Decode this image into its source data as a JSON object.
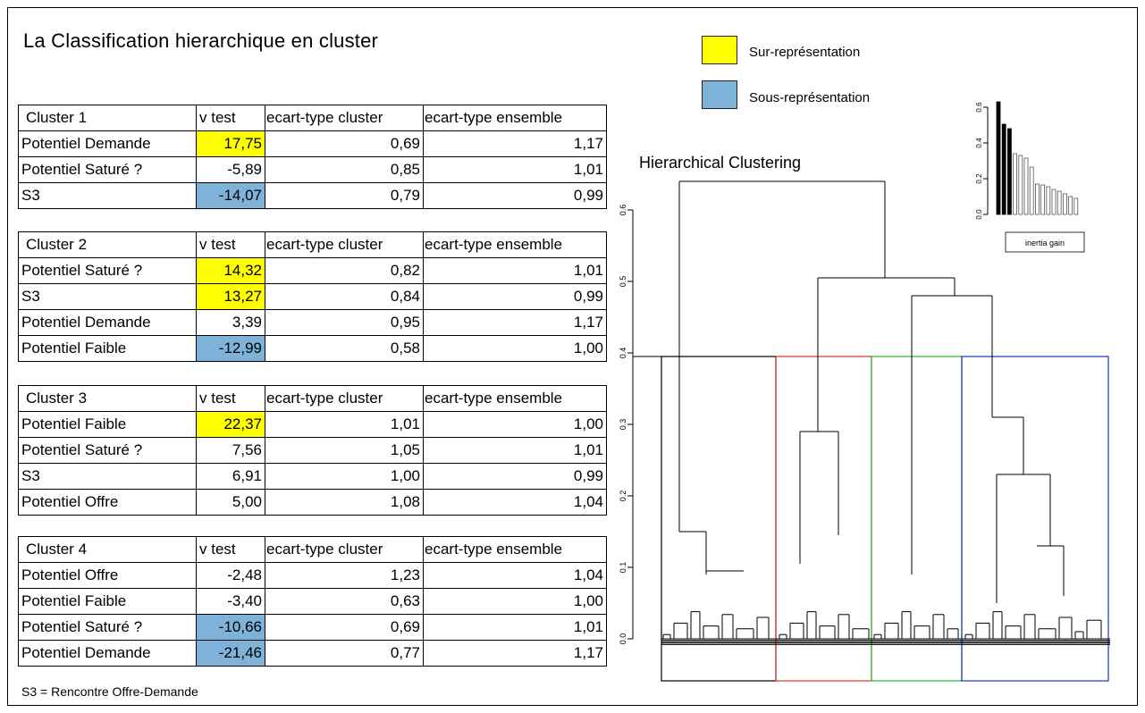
{
  "title": "La Classification hierarchique en cluster",
  "legend": [
    {
      "label": "Sur-représentation",
      "color": "#ffff00"
    },
    {
      "label": "Sous-représentation",
      "color": "#7fb2d9"
    }
  ],
  "clusters": [
    {
      "header": [
        "Cluster 1",
        "v test",
        "ecart-type cluster",
        "ecart-type ensemble"
      ],
      "rows": [
        {
          "label": "Potentiel Demande",
          "vtest": "17,75",
          "sd_cluster": "0,69",
          "sd_all": "1,17",
          "highlight": "over"
        },
        {
          "label": "Potentiel Saturé ?",
          "vtest": "-5,89",
          "sd_cluster": "0,85",
          "sd_all": "1,01",
          "highlight": ""
        },
        {
          "label": "S3",
          "vtest": "-14,07",
          "sd_cluster": "0,79",
          "sd_all": "0,99",
          "highlight": "under"
        }
      ]
    },
    {
      "header": [
        "Cluster 2",
        "v test",
        "ecart-type cluster",
        "ecart-type ensemble"
      ],
      "rows": [
        {
          "label": "Potentiel Saturé ?",
          "vtest": "14,32",
          "sd_cluster": "0,82",
          "sd_all": "1,01",
          "highlight": "over"
        },
        {
          "label": "S3",
          "vtest": "13,27",
          "sd_cluster": "0,84",
          "sd_all": "0,99",
          "highlight": "over"
        },
        {
          "label": "Potentiel Demande",
          "vtest": "3,39",
          "sd_cluster": "0,95",
          "sd_all": "1,17",
          "highlight": ""
        },
        {
          "label": "Potentiel Faible",
          "vtest": "-12,99",
          "sd_cluster": "0,58",
          "sd_all": "1,00",
          "highlight": "under"
        }
      ]
    },
    {
      "header": [
        "Cluster 3",
        "v test",
        "ecart-type cluster",
        "ecart-type ensemble"
      ],
      "rows": [
        {
          "label": "Potentiel Faible",
          "vtest": "22,37",
          "sd_cluster": "1,01",
          "sd_all": "1,00",
          "highlight": "over"
        },
        {
          "label": "Potentiel Saturé ?",
          "vtest": "7,56",
          "sd_cluster": "1,05",
          "sd_all": "1,01",
          "highlight": ""
        },
        {
          "label": "S3",
          "vtest": "6,91",
          "sd_cluster": "1,00",
          "sd_all": "0,99",
          "highlight": ""
        },
        {
          "label": "Potentiel Offre",
          "vtest": "5,00",
          "sd_cluster": "1,08",
          "sd_all": "1,04",
          "highlight": ""
        }
      ]
    },
    {
      "header": [
        "Cluster 4",
        "v test",
        "ecart-type cluster",
        "ecart-type ensemble"
      ],
      "rows": [
        {
          "label": "Potentiel Offre",
          "vtest": "-2,48",
          "sd_cluster": "1,23",
          "sd_all": "1,04",
          "highlight": ""
        },
        {
          "label": "Potentiel Faible",
          "vtest": "-3,40",
          "sd_cluster": "0,63",
          "sd_all": "1,00",
          "highlight": ""
        },
        {
          "label": "Potentiel Saturé ?",
          "vtest": "-10,66",
          "sd_cluster": "0,69",
          "sd_all": "1,01",
          "highlight": "under"
        },
        {
          "label": "Potentiel Demande",
          "vtest": "-21,46",
          "sd_cluster": "0,77",
          "sd_all": "1,17",
          "highlight": "under"
        }
      ]
    }
  ],
  "footnote": "S3 = Rencontre Offre-Demande",
  "chart_data": [
    {
      "type": "dendrogram",
      "title": "Hierarchical Clustering",
      "ylim": [
        0,
        0.65
      ],
      "yticks": [
        "0.0",
        "0.1",
        "0.2",
        "0.3",
        "0.4",
        "0.5",
        "0.6"
      ],
      "cut_height": 0.395,
      "merge_heights": [
        0.64,
        0.505,
        0.48,
        0.395,
        0.31,
        0.29,
        0.275,
        0.23,
        0.15,
        0.13,
        0.105,
        0.095,
        0.09,
        0.075
      ],
      "cluster_boxes": [
        {
          "cluster": "Cluster 1",
          "color": "#000000"
        },
        {
          "cluster": "Cluster 2",
          "color": "#e03030"
        },
        {
          "cluster": "Cluster 3",
          "color": "#30b030"
        },
        {
          "cluster": "Cluster 4",
          "color": "#2030c0"
        }
      ]
    },
    {
      "type": "bar",
      "xlabel": "inertia gain",
      "ylim": [
        0,
        0.65
      ],
      "yticks": [
        "0.0",
        "0.2",
        "0.4",
        "0.6"
      ],
      "values": [
        0.63,
        0.505,
        0.48,
        0.34,
        0.33,
        0.315,
        0.265,
        0.17,
        0.165,
        0.155,
        0.14,
        0.13,
        0.115,
        0.1,
        0.09
      ],
      "highlighted_count": 3
    }
  ]
}
